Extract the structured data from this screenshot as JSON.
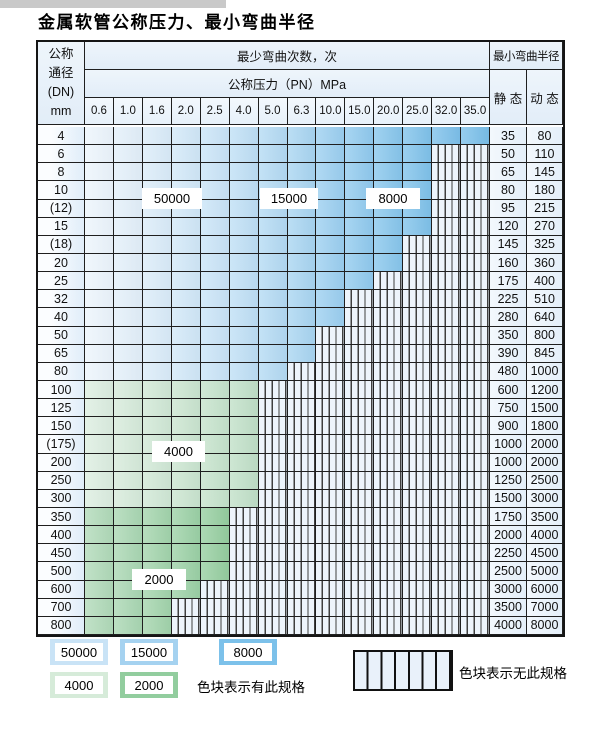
{
  "title": "金属软管公称压力、最小弯曲半径",
  "table": {
    "header": {
      "dn_lines": [
        "公称",
        "通径",
        "(DN)",
        "mm"
      ],
      "bend_cycles": "最少弯曲次数，次",
      "pressure": "公称压力（PN）MPa",
      "radius": "最小弯曲半径",
      "static": "静 态",
      "dynamic": "动 态",
      "pressure_columns": [
        "0.6",
        "1.0",
        "1.6",
        "2.0",
        "2.5",
        "4.0",
        "5.0",
        "6.3",
        "10.0",
        "15.0",
        "20.0",
        "25.0",
        "32.0",
        "35.0"
      ]
    },
    "rows": [
      {
        "dn": "4",
        "zone": "blue",
        "colored_through": "35.0",
        "cycles_max": "8000",
        "static": "35",
        "dynamic": "80"
      },
      {
        "dn": "6",
        "zone": "blue",
        "colored_through": "25.0",
        "cycles_max": "8000",
        "static": "50",
        "dynamic": "110"
      },
      {
        "dn": "8",
        "zone": "blue",
        "colored_through": "25.0",
        "cycles_max": "8000",
        "static": "65",
        "dynamic": "145"
      },
      {
        "dn": "10",
        "zone": "blue",
        "colored_through": "25.0",
        "cycles_max": "8000",
        "static": "80",
        "dynamic": "180"
      },
      {
        "dn": "(12)",
        "zone": "blue",
        "colored_through": "25.0",
        "cycles_max": "8000",
        "static": "95",
        "dynamic": "215"
      },
      {
        "dn": "15",
        "zone": "blue",
        "colored_through": "25.0",
        "cycles_max": "8000",
        "static": "120",
        "dynamic": "270"
      },
      {
        "dn": "(18)",
        "zone": "blue",
        "colored_through": "20.0",
        "cycles_max": "8000",
        "static": "145",
        "dynamic": "325"
      },
      {
        "dn": "20",
        "zone": "blue",
        "colored_through": "20.0",
        "cycles_max": "8000",
        "static": "160",
        "dynamic": "360"
      },
      {
        "dn": "25",
        "zone": "blue",
        "colored_through": "15.0",
        "cycles_max": "8000",
        "static": "175",
        "dynamic": "400"
      },
      {
        "dn": "32",
        "zone": "blue",
        "colored_through": "10.0",
        "cycles_max": "8000",
        "static": "225",
        "dynamic": "510"
      },
      {
        "dn": "40",
        "zone": "blue",
        "colored_through": "10.0",
        "cycles_max": "8000",
        "static": "280",
        "dynamic": "640"
      },
      {
        "dn": "50",
        "zone": "blue",
        "colored_through": "6.3",
        "cycles_max": "15000",
        "static": "350",
        "dynamic": "800"
      },
      {
        "dn": "65",
        "zone": "blue",
        "colored_through": "6.3",
        "cycles_max": "15000",
        "static": "390",
        "dynamic": "845"
      },
      {
        "dn": "80",
        "zone": "blue",
        "colored_through": "5.0",
        "cycles_max": "15000",
        "static": "480",
        "dynamic": "1000"
      },
      {
        "dn": "100",
        "zone": "g4",
        "colored_through": "4.0",
        "cycles_max": "4000",
        "static": "600",
        "dynamic": "1200"
      },
      {
        "dn": "125",
        "zone": "g4",
        "colored_through": "4.0",
        "cycles_max": "4000",
        "static": "750",
        "dynamic": "1500"
      },
      {
        "dn": "150",
        "zone": "g4",
        "colored_through": "4.0",
        "cycles_max": "4000",
        "static": "900",
        "dynamic": "1800"
      },
      {
        "dn": "(175)",
        "zone": "g4",
        "colored_through": "4.0",
        "cycles_max": "4000",
        "static": "1000",
        "dynamic": "2000"
      },
      {
        "dn": "200",
        "zone": "g4",
        "colored_through": "4.0",
        "cycles_max": "4000",
        "static": "1000",
        "dynamic": "2000"
      },
      {
        "dn": "250",
        "zone": "g4",
        "colored_through": "4.0",
        "cycles_max": "4000",
        "static": "1250",
        "dynamic": "2500"
      },
      {
        "dn": "300",
        "zone": "g4",
        "colored_through": "4.0",
        "cycles_max": "4000",
        "static": "1500",
        "dynamic": "3000"
      },
      {
        "dn": "350",
        "zone": "g2",
        "colored_through": "2.5",
        "cycles_max": "2000",
        "static": "1750",
        "dynamic": "3500"
      },
      {
        "dn": "400",
        "zone": "g2",
        "colored_through": "2.5",
        "cycles_max": "2000",
        "static": "2000",
        "dynamic": "4000"
      },
      {
        "dn": "450",
        "zone": "g2",
        "colored_through": "2.5",
        "cycles_max": "2000",
        "static": "2250",
        "dynamic": "4500"
      },
      {
        "dn": "500",
        "zone": "g2",
        "colored_through": "2.5",
        "cycles_max": "2000",
        "static": "2500",
        "dynamic": "5000"
      },
      {
        "dn": "600",
        "zone": "g2",
        "colored_through": "2.0",
        "cycles_max": "2000",
        "static": "3000",
        "dynamic": "6000"
      },
      {
        "dn": "700",
        "zone": "g2",
        "colored_through": "1.6",
        "cycles_max": "2000",
        "static": "3500",
        "dynamic": "7000"
      },
      {
        "dn": "800",
        "zone": "g2",
        "colored_through": "1.6",
        "cycles_max": "2000",
        "static": "4000",
        "dynamic": "8000"
      }
    ],
    "cycle_bands_blue": {
      "50000": [
        "0.6",
        "2.5"
      ],
      "15000": [
        "4.0",
        "6.3"
      ],
      "8000": [
        "10.0",
        "35.0"
      ]
    }
  },
  "overlay_labels": {
    "l50000": "50000",
    "l15000": "15000",
    "l8000": "8000",
    "l4000": "4000",
    "l2000": "2000"
  },
  "legend": {
    "swatches": [
      {
        "label": "50000",
        "color": "#c9e3f6"
      },
      {
        "label": "15000",
        "color": "#a5d2f0"
      },
      {
        "label": "8000",
        "color": "#7cc1ea"
      },
      {
        "label": "4000",
        "color": "#d6ebd9"
      },
      {
        "label": "2000",
        "color": "#92cd9e"
      }
    ],
    "has_spec_text": "色块表示有此规格",
    "no_spec_text": "色块表示无此规格"
  },
  "colors": {
    "shades": {
      "blue": [
        "#ecf5fc",
        "#e3f0fa",
        "#daecf9",
        "#d1e8f8",
        "#c9e4f7",
        "#bedff5",
        "#b3daf3",
        "#a8d5f1",
        "#9bcff0",
        "#90caee",
        "#87c6ec",
        "#7fc2ea",
        "#7cc0ea",
        "#79bfe9"
      ],
      "g4": [
        "#dceee0",
        "#d6ebda",
        "#d0e8d5",
        "#cae5cf",
        "#c5e3cb",
        "#c0e0c7"
      ],
      "g2": [
        "#b0dab8",
        "#a9d7b2",
        "#a2d4ab",
        "#9bd1a5",
        "#95ce9f",
        "#8fcb9a"
      ]
    },
    "hatch_fill": "#edf4fb",
    "hatch_line": "#3f3f3f"
  }
}
